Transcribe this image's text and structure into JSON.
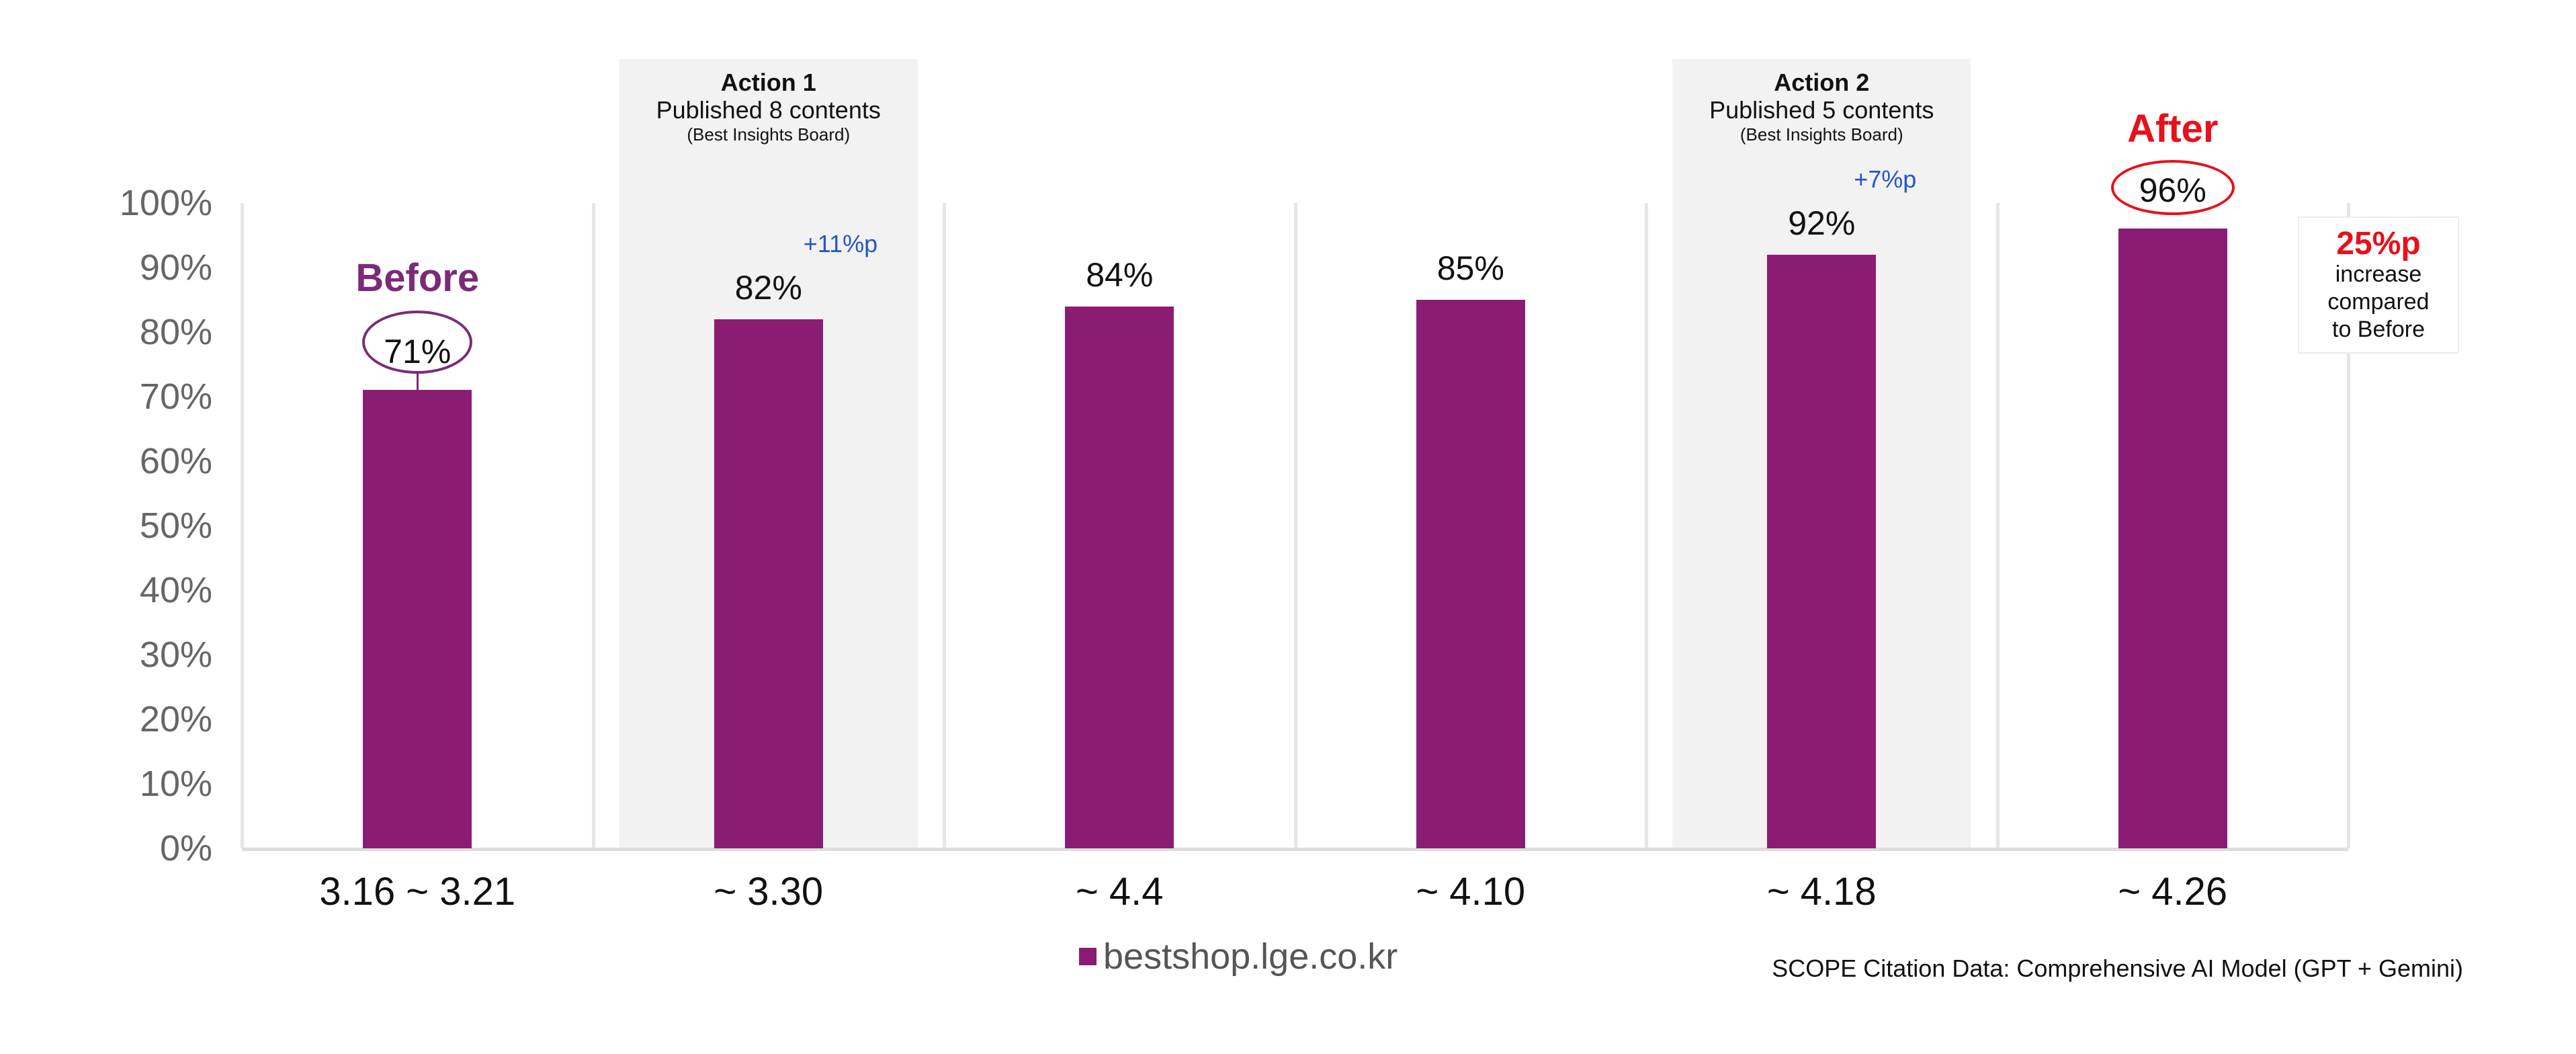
{
  "chart_data": {
    "type": "bar",
    "categories": [
      "3.16 ~ 3.21",
      "~ 3.30",
      "~ 4.4",
      "~ 4.10",
      "~ 4.18",
      "~ 4.26"
    ],
    "series": [
      {
        "name": "bestshop.lge.co.kr",
        "values": [
          71,
          82,
          84,
          85,
          92,
          96
        ]
      }
    ],
    "value_labels": [
      "71%",
      "82%",
      "84%",
      "85%",
      "92%",
      "96%"
    ],
    "ylim": [
      0,
      100
    ],
    "yticks": [
      "0%",
      "10%",
      "20%",
      "30%",
      "40%",
      "50%",
      "60%",
      "70%",
      "80%",
      "90%",
      "100%"
    ],
    "bar_color": "#8b1c73",
    "legend": {
      "label": "bestshop.lge.co.kr",
      "position": "bottom"
    },
    "annotations": {
      "before_label": "Before",
      "after_label": "After",
      "actions": [
        {
          "category_index": 1,
          "title": "Action 1",
          "line": "Published 8 contents",
          "sub": "(Best Insights Board)"
        },
        {
          "category_index": 4,
          "title": "Action 2",
          "line": "Published 5 contents",
          "sub": "(Best Insights Board)"
        }
      ],
      "deltas": [
        {
          "category_index": 1,
          "text": "+11%p"
        },
        {
          "category_index": 4,
          "text": "+7%p"
        }
      ],
      "summary": {
        "big": "25%p",
        "lines": [
          "increase",
          "compared",
          "to Before"
        ]
      }
    },
    "source": "SCOPE Citation Data: Comprehensive AI Model (GPT + Gemini)"
  },
  "colors": {
    "bar": "#8b1c73",
    "before": "#7b2a78",
    "after": "#e8101a",
    "delta": "#2456c6"
  }
}
